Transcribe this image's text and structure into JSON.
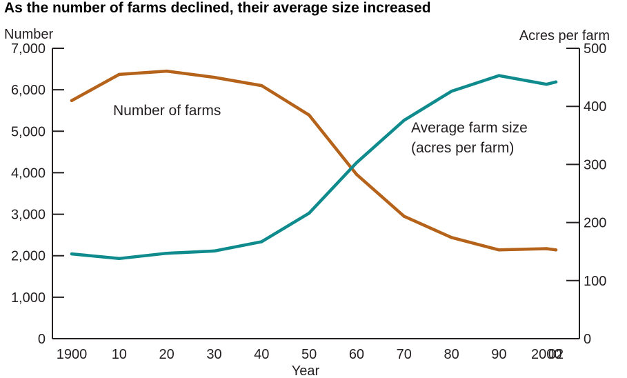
{
  "chart_data": {
    "type": "line",
    "title": "As the number of farms declined, their average size increased",
    "xlabel": "Year",
    "ylabel_left": "Number",
    "ylabel_right": "Acres per farm",
    "x": [
      1900,
      1910,
      1920,
      1930,
      1940,
      1950,
      1960,
      1970,
      1980,
      1990,
      2000,
      2002
    ],
    "x_tick_labels": [
      "1900",
      "10",
      "20",
      "30",
      "40",
      "50",
      "60",
      "70",
      "80",
      "90",
      "2000",
      "02"
    ],
    "y_left_ticks": [
      "0",
      "1,000",
      "2,000",
      "3,000",
      "4,000",
      "5,000",
      "6,000",
      "7,000"
    ],
    "y_right_ticks": [
      "0",
      "100",
      "200",
      "300",
      "400",
      "500"
    ],
    "ylim_left": [
      0,
      7000
    ],
    "ylim_right": [
      0,
      500
    ],
    "grid": false,
    "series": [
      {
        "name": "Number of farms",
        "axis": "left",
        "color": "#b5621a",
        "values": [
          5740,
          6370,
          6450,
          6300,
          6100,
          5390,
          3960,
          2950,
          2440,
          2140,
          2170,
          2140
        ]
      },
      {
        "name": "Average farm size (acres per farm)",
        "axis": "right",
        "color": "#0f8b8d",
        "values": [
          146,
          138,
          147,
          151,
          167,
          216,
          303,
          376,
          426,
          453,
          438,
          442
        ]
      }
    ],
    "annotations": [
      {
        "text": "Number of farms"
      },
      {
        "text": "Average farm size"
      },
      {
        "text": "(acres per farm)"
      }
    ]
  }
}
